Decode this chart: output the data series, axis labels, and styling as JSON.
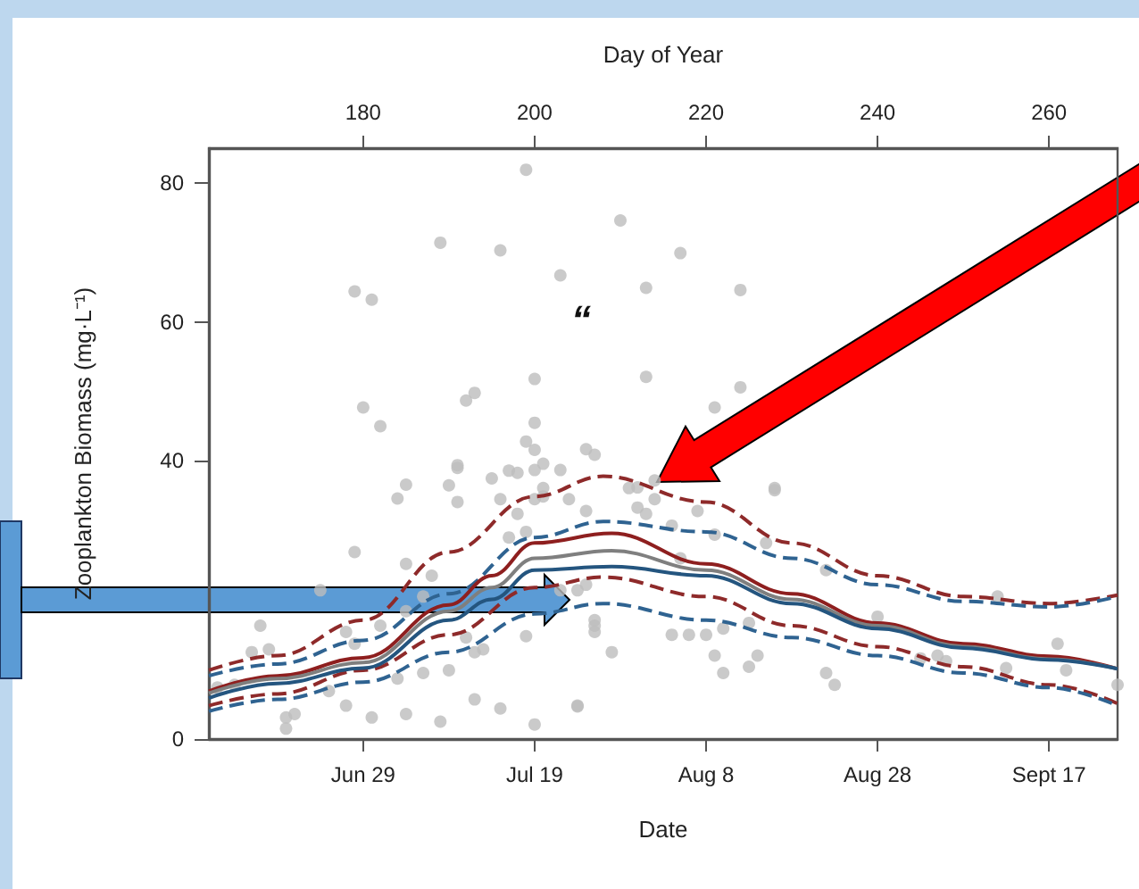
{
  "chart_data": {
    "type": "scatter",
    "xlabel": "Date",
    "x2label": "Day of Year",
    "ylabel": "Zooplankton Biomass (mg·L⁻¹)",
    "xlim": [
      "--06-11",
      "--09-25"
    ],
    "xticks": [
      {
        "value": "--06-29",
        "label": "Jun 29"
      },
      {
        "value": "--07-19",
        "label": "Jul 19"
      },
      {
        "value": "--08-08",
        "label": "Aug 8"
      },
      {
        "value": "--08-28",
        "label": "Aug 28"
      },
      {
        "value": "--09-17",
        "label": "Sept 17"
      }
    ],
    "x2lim": [
      162,
      268
    ],
    "x2ticks": [
      180,
      200,
      220,
      240,
      260
    ],
    "ylim": [
      0,
      85
    ],
    "yticks": [
      0,
      40,
      60,
      80
    ],
    "grid": false,
    "annotations": [
      "“"
    ],
    "series": [
      {
        "color": "#bdbdbd",
        "marker": "circle",
        "x": [
          "--06-28",
          "--06-30",
          "--07-08",
          "--07-15",
          "--07-18",
          "--07-22",
          "--07-29",
          "--08-01",
          "--06-29",
          "--07-01",
          "--07-11",
          "--07-12",
          "--07-19",
          "--07-19",
          "--07-18",
          "--07-19",
          "--07-26",
          "--08-01",
          "--07-20",
          "--07-10",
          "--08-05",
          "--08-12",
          "--08-12",
          "--08-09",
          "--07-04",
          "--07-03",
          "--07-19",
          "--07-22",
          "--07-25",
          "--07-20",
          "--07-30",
          "--08-02",
          "--08-06",
          "--08-11",
          "--08-16",
          "--06-28",
          "--07-10",
          "--07-09",
          "--07-10",
          "--07-14",
          "--07-16",
          "--07-17",
          "--07-15",
          "--07-17",
          "--07-19",
          "--07-20",
          "--07-23",
          "--07-25",
          "--07-18",
          "--07-16",
          "--07-04",
          "--07-07",
          "--07-06",
          "--06-17",
          "--06-16",
          "--06-18",
          "--06-24",
          "--06-27",
          "--06-28",
          "--06-25",
          "--06-27",
          "--06-21",
          "--06-20",
          "--06-20",
          "--06-30",
          "--07-04",
          "--07-08",
          "--07-03",
          "--07-06",
          "--07-09",
          "--07-12",
          "--07-15",
          "--07-12",
          "--07-13",
          "--07-11",
          "--07-19",
          "--07-24",
          "--07-18",
          "--07-22",
          "--07-24",
          "--07-26",
          "--06-12",
          "--06-14",
          "--07-04",
          "--07-01",
          "--07-31",
          "--08-02",
          "--07-31",
          "--08-01",
          "--08-07",
          "--08-09",
          "--08-04",
          "--08-16",
          "--08-15",
          "--08-05",
          "--07-25",
          "--07-26",
          "--07-26",
          "--07-28",
          "--07-24",
          "--08-04",
          "--08-06",
          "--08-08",
          "--08-10",
          "--08-09",
          "--08-10",
          "--08-13",
          "--08-14",
          "--08-13",
          "--08-22",
          "--08-22",
          "--08-23",
          "--08-28",
          "--09-02",
          "--09-04",
          "--09-05",
          "--09-11",
          "--09-12",
          "--09-18",
          "--09-19",
          "--09-25"
        ],
        "values": [
          64.4,
          63.2,
          71.4,
          70.3,
          81.9,
          66.7,
          74.6,
          64.9,
          47.7,
          45.0,
          48.7,
          49.8,
          51.8,
          45.5,
          42.8,
          41.6,
          40.9,
          52.1,
          39.6,
          39.4,
          69.9,
          64.6,
          50.6,
          47.7,
          36.6,
          34.6,
          38.7,
          38.7,
          41.7,
          36.1,
          36.1,
          37.2,
          null,
          null,
          36.1,
          26.9,
          39.0,
          36.5,
          34.1,
          37.5,
          38.6,
          38.3,
          34.5,
          32.4,
          34.5,
          34.9,
          34.5,
          32.8,
          29.8,
          29.0,
          25.2,
          23.5,
          20.5,
          16.3,
          12.5,
          12.9,
          21.4,
          15.4,
          13.7,
          6.9,
          4.8,
          3.6,
          1.5,
          3.1,
          3.1,
          3.6,
          2.5,
          8.7,
          9.5,
          9.9,
          5.7,
          4.4,
          12.5,
          12.9,
          14.6,
          2.1,
          4.7,
          14.8,
          21.4,
          21.4,
          16.3,
          7.4,
          7.8,
          18.4,
          16.3,
          36.2,
          34.5,
          33.3,
          32.4,
          32.8,
          29.4,
          30.7,
          35.8,
          28.2,
          26.0,
          22.2,
          17.1,
          15.4,
          12.5,
          4.8,
          15.0,
          15.0,
          15.0,
          15.9,
          12.0,
          9.5,
          10.4,
          12.0,
          16.7,
          24.3,
          9.5,
          7.8,
          17.6,
          11.6,
          12.0,
          11.2,
          20.5,
          10.2,
          13.7,
          9.9,
          7.8
        ]
      },
      {
        "type": "line",
        "color": "#8e2a2a",
        "marker": "none",
        "line_style": "dashed",
        "x": [
          "--06-11",
          "--06-19",
          "--06-29",
          "--07-09",
          "--07-19",
          "--07-27",
          "--08-08",
          "--08-18",
          "--08-28",
          "--09-07",
          "--09-17",
          "--09-25"
        ],
        "values": [
          9.9,
          12.0,
          17.1,
          26.9,
          34.9,
          37.8,
          34.1,
          28.2,
          23.5,
          20.5,
          19.5,
          20.7
        ]
      },
      {
        "type": "line",
        "color": "#2f6391",
        "marker": "none",
        "line_style": "dashed",
        "x": [
          "--06-11",
          "--06-19",
          "--06-29",
          "--07-09",
          "--07-19",
          "--07-27",
          "--08-08",
          "--08-18",
          "--08-28",
          "--09-07",
          "--09-17",
          "--09-25"
        ],
        "values": [
          9.1,
          10.8,
          14.2,
          20.9,
          29.0,
          31.3,
          29.8,
          26.0,
          22.2,
          19.8,
          19.0,
          20.5
        ]
      },
      {
        "type": "line",
        "color": "#8e2a2a",
        "marker": "none",
        "line_style": "dashed",
        "x": [
          "--06-11",
          "--06-19",
          "--06-29",
          "--07-09",
          "--07-19",
          "--07-27",
          "--08-08",
          "--08-18",
          "--08-28",
          "--09-07",
          "--09-17",
          "--09-25"
        ],
        "values": [
          4.8,
          6.5,
          9.9,
          15.0,
          21.8,
          23.3,
          20.5,
          16.3,
          13.3,
          10.4,
          7.8,
          5.1
        ]
      },
      {
        "type": "line",
        "color": "#2f6391",
        "marker": "none",
        "line_style": "dashed",
        "x": [
          "--06-11",
          "--06-19",
          "--06-29",
          "--07-09",
          "--07-19",
          "--07-27",
          "--08-08",
          "--08-18",
          "--08-28",
          "--09-07",
          "--09-17",
          "--09-25"
        ],
        "values": [
          4.0,
          5.7,
          8.2,
          12.5,
          18.0,
          19.5,
          17.1,
          14.6,
          12.0,
          9.5,
          7.4,
          4.8
        ]
      },
      {
        "type": "line",
        "color": "#8e1f1f",
        "marker": "none",
        "line_style": "solid",
        "x": [
          "--06-11",
          "--06-19",
          "--06-29",
          "--07-09",
          "--07-14",
          "--07-19",
          "--07-28",
          "--08-08",
          "--08-18",
          "--08-28",
          "--09-07",
          "--09-17",
          "--09-25"
        ],
        "values": [
          6.9,
          9.1,
          11.7,
          19.3,
          23.5,
          28.2,
          29.6,
          25.2,
          20.9,
          16.7,
          13.7,
          11.9,
          10.1
        ]
      },
      {
        "type": "line",
        "color": "#7f7f7f",
        "marker": "none",
        "line_style": "solid",
        "x": [
          "--06-11",
          "--06-19",
          "--06-29",
          "--07-09",
          "--07-14",
          "--07-19",
          "--07-28",
          "--08-08",
          "--08-18",
          "--08-28",
          "--09-07",
          "--09-17",
          "--09-25"
        ],
        "values": [
          6.6,
          8.7,
          11.0,
          18.4,
          21.8,
          26.0,
          27.1,
          24.3,
          20.1,
          16.3,
          13.3,
          11.5,
          10.1
        ]
      },
      {
        "type": "line",
        "color": "#24557f",
        "marker": "none",
        "line_style": "solid",
        "x": [
          "--06-11",
          "--06-19",
          "--06-29",
          "--07-09",
          "--07-14",
          "--07-19",
          "--07-28",
          "--08-08",
          "--08-18",
          "--08-28",
          "--09-07",
          "--09-17",
          "--09-25"
        ],
        "values": [
          5.9,
          8.0,
          10.2,
          17.1,
          20.1,
          24.3,
          24.8,
          23.5,
          19.5,
          15.9,
          13.1,
          11.4,
          10.1
        ]
      }
    ]
  }
}
